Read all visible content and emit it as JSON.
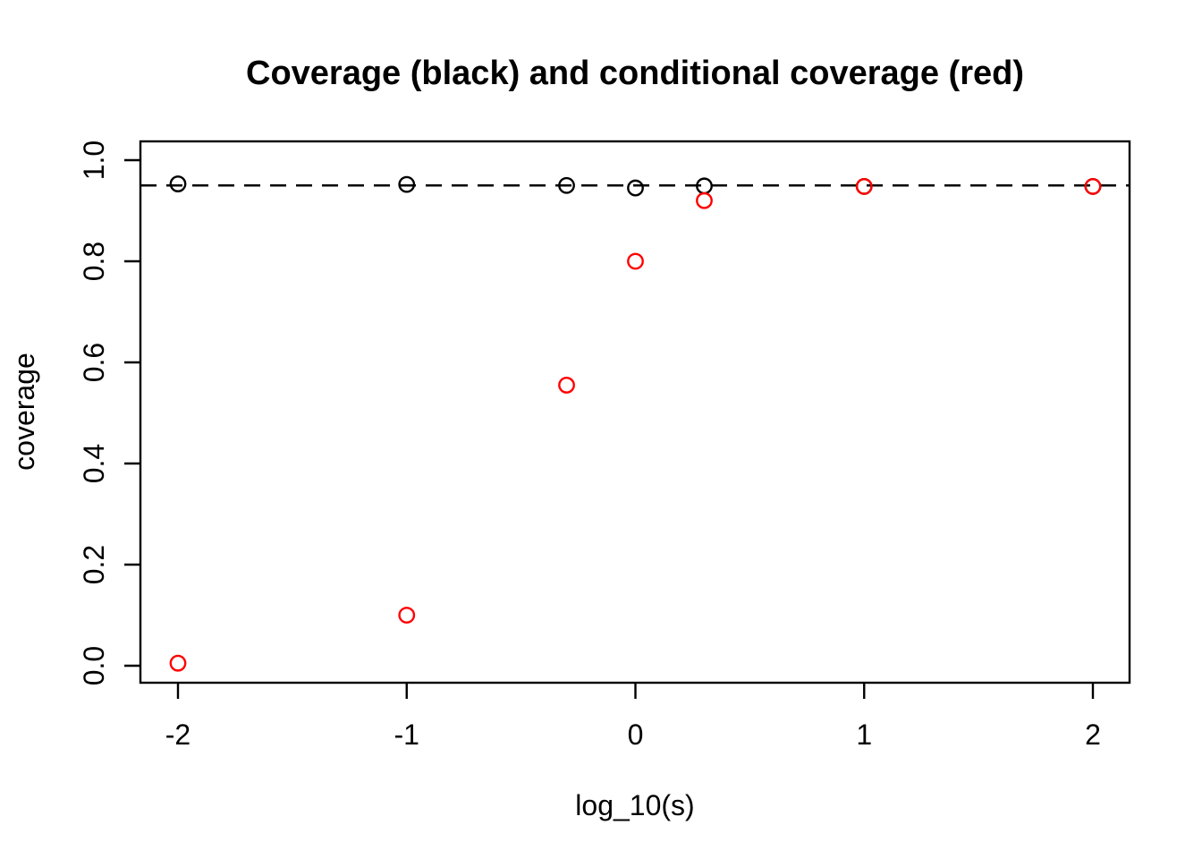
{
  "title": "Coverage (black) and conditional coverage (red)",
  "chart_data": {
    "type": "scatter",
    "title": "Coverage (black) and conditional coverage (red)",
    "xlabel": "log_10(s)",
    "ylabel": "coverage",
    "x": [
      -2,
      -1,
      -0.301,
      0,
      0.301,
      1,
      2
    ],
    "series": [
      {
        "name": "coverage",
        "color": "#000000",
        "marker": "open-circle",
        "values": [
          0.953,
          0.952,
          0.95,
          0.945,
          0.949,
          0.948,
          0.948
        ]
      },
      {
        "name": "conditional coverage",
        "color": "#FF0000",
        "marker": "open-circle",
        "values": [
          0.005,
          0.1,
          0.555,
          0.8,
          0.92,
          0.948,
          0.948
        ]
      }
    ],
    "reference_line": {
      "y": 0.95,
      "style": "dashed",
      "color": "#000000"
    },
    "x_ticks": [
      "-2",
      "-1",
      "0",
      "1",
      "2"
    ],
    "x_tick_values": [
      -2,
      -1,
      0,
      1,
      2
    ],
    "y_ticks": [
      "0.0",
      "0.2",
      "0.4",
      "0.6",
      "0.8",
      "1.0"
    ],
    "y_tick_values": [
      0.0,
      0.2,
      0.4,
      0.6,
      0.8,
      1.0
    ],
    "xlim": [
      -2.16,
      2.16
    ],
    "ylim": [
      -0.04,
      1.04
    ],
    "grid": false,
    "legend_position": "none",
    "background": "#ffffff"
  }
}
